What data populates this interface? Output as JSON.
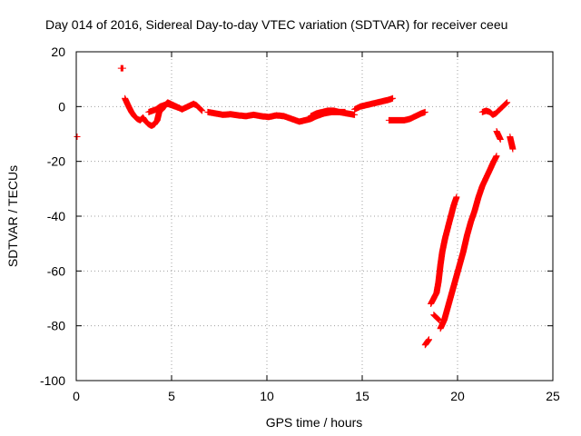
{
  "chart_data": {
    "type": "scatter",
    "title": "Day 014 of 2016, Sidereal Day-to-day VTEC variation (SDTVAR) for receiver ceeu",
    "xlabel": "GPS time / hours",
    "ylabel": "SDTVAR / TECUs",
    "xlim": [
      0,
      25
    ],
    "ylim": [
      -100,
      20
    ],
    "xticks": [
      0,
      5,
      10,
      15,
      20,
      25
    ],
    "xtick_labels": [
      "0",
      "5",
      "10",
      "15",
      "20",
      "25"
    ],
    "yticks": [
      -100,
      -80,
      -60,
      -40,
      -20,
      0,
      20
    ],
    "ytick_labels": [
      "-100",
      "-80",
      "-60",
      "-40",
      "-20",
      "0",
      "20"
    ],
    "grid": true,
    "marker": "+",
    "colors": {
      "series": "#ff0000",
      "grid": "#a0a0a0",
      "axis": "#000000"
    },
    "series": [
      {
        "name": "SDTVAR",
        "segments": [
          {
            "x": [
              2.35,
              2.45
            ],
            "y": [
              14.0,
              14.0
            ]
          },
          {
            "x": [
              2.55,
              2.65,
              2.75,
              2.9,
              3.05,
              3.2,
              3.35,
              3.5,
              3.65,
              3.8,
              3.95,
              4.1,
              4.25,
              4.35,
              4.5,
              4.65,
              4.8,
              4.95,
              5.1,
              5.25,
              5.4,
              5.55,
              5.7,
              5.85,
              6.0,
              6.15,
              6.3,
              6.45,
              6.6
            ],
            "y": [
              3.0,
              1.5,
              0.0,
              -2.0,
              -3.5,
              -4.5,
              -5.0,
              -4.0,
              -5.5,
              -6.5,
              -7.0,
              -6.5,
              -5.0,
              -2.0,
              -1.0,
              0.5,
              1.5,
              1.0,
              0.5,
              0.0,
              -0.5,
              -1.0,
              -0.5,
              0.0,
              0.5,
              1.0,
              0.5,
              -0.5,
              -1.5
            ]
          },
          {
            "x": [
              3.8,
              4.0,
              4.2,
              4.4,
              4.6,
              4.8,
              5.0,
              5.2,
              5.4
            ],
            "y": [
              -2.0,
              -1.5,
              -1.0,
              0.0,
              0.5,
              1.0,
              0.5,
              0.0,
              -0.5
            ]
          },
          {
            "x": [
              6.9,
              7.3,
              7.7,
              8.1,
              8.5,
              8.9,
              9.3,
              9.7,
              10.1,
              10.5,
              10.9,
              11.3,
              11.7,
              12.0,
              12.3,
              12.6,
              13.0,
              13.4,
              13.8,
              14.2,
              14.6
            ],
            "y": [
              -2.0,
              -2.5,
              -3.0,
              -2.8,
              -3.2,
              -3.5,
              -3.0,
              -3.5,
              -3.8,
              -3.2,
              -3.5,
              -4.5,
              -5.5,
              -5.0,
              -4.5,
              -3.5,
              -2.5,
              -2.0,
              -2.0,
              -2.5,
              -3.0
            ]
          },
          {
            "x": [
              12.3,
              12.6,
              12.9,
              13.2,
              13.5,
              13.8,
              14.1
            ],
            "y": [
              -3.5,
              -2.5,
              -2.0,
              -1.5,
              -1.5,
              -2.0,
              -2.0
            ]
          },
          {
            "x": [
              14.6,
              14.9,
              15.2,
              15.5,
              15.8,
              16.1,
              16.4,
              16.6
            ],
            "y": [
              -1.0,
              0.0,
              0.5,
              1.0,
              1.5,
              2.0,
              2.5,
              3.0
            ]
          },
          {
            "x": [
              16.4,
              16.8,
              17.2,
              17.5,
              17.8,
              18.1,
              18.3
            ],
            "y": [
              -5.0,
              -5.0,
              -5.0,
              -4.5,
              -3.5,
              -2.5,
              -2.0
            ]
          },
          {
            "x": [
              18.3,
              18.4,
              18.5
            ],
            "y": [
              -87.0,
              -86.0,
              -85.0
            ]
          },
          {
            "x": [
              18.6,
              18.75,
              18.9,
              19.0,
              19.1,
              19.2,
              19.35,
              19.5,
              19.65,
              19.8,
              19.95
            ],
            "y": [
              -72.0,
              -70.0,
              -68.0,
              -64.0,
              -58.0,
              -53.0,
              -48.0,
              -44.0,
              -40.0,
              -36.0,
              -33.0
            ]
          },
          {
            "x": [
              18.75,
              18.9,
              19.05
            ],
            "y": [
              -76.0,
              -77.0,
              -78.0
            ]
          },
          {
            "x": [
              19.1,
              19.3,
              19.5,
              19.7,
              19.9,
              20.1,
              20.3,
              20.5,
              20.7,
              20.9,
              21.1,
              21.3,
              21.5,
              21.7,
              21.9,
              22.05
            ],
            "y": [
              -81.0,
              -78.0,
              -73.0,
              -68.0,
              -63.0,
              -58.0,
              -53.0,
              -47.0,
              -42.0,
              -38.0,
              -33.0,
              -29.0,
              -26.0,
              -23.0,
              -20.0,
              -18.0
            ]
          },
          {
            "x": [
              21.3,
              21.5,
              21.7,
              21.85,
              22.0,
              22.15,
              22.3,
              22.45,
              22.6
            ],
            "y": [
              -2.0,
              -1.5,
              -2.0,
              -3.0,
              -2.5,
              -1.5,
              -0.5,
              0.5,
              1.5
            ]
          },
          {
            "x": [
              22.05,
              22.15,
              22.25
            ],
            "y": [
              -9.0,
              -10.5,
              -12.0
            ]
          },
          {
            "x": [
              22.75,
              22.8,
              22.85,
              22.9
            ],
            "y": [
              -11.0,
              -12.5,
              -14.0,
              -15.5
            ]
          },
          {
            "x": [
              0.05
            ],
            "y": [
              -11.0
            ]
          }
        ]
      }
    ]
  }
}
